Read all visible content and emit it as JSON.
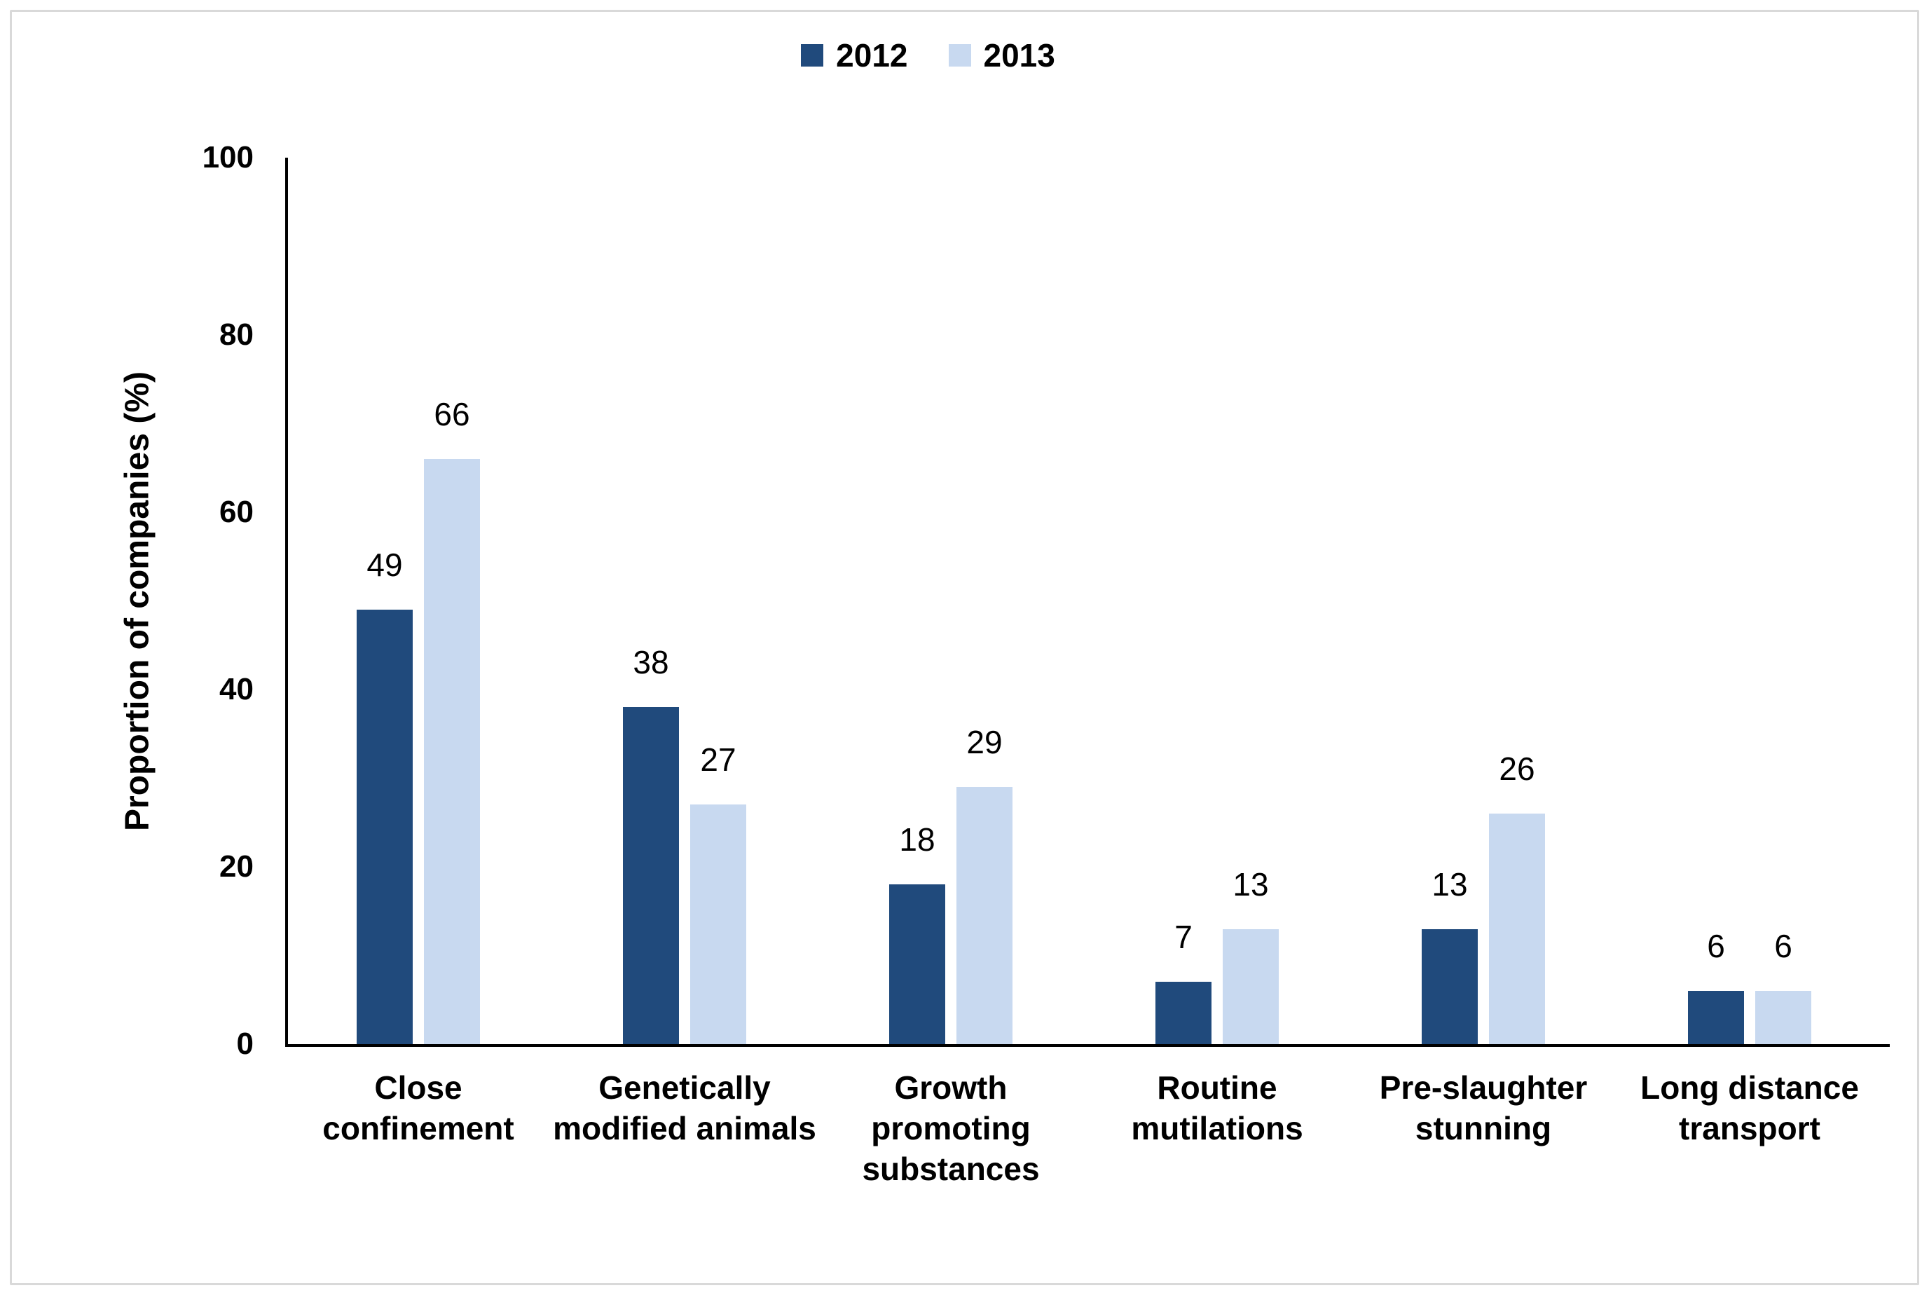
{
  "frame": {
    "border_color": "#d9d9d9",
    "background": "#ffffff"
  },
  "chart_data": {
    "type": "bar",
    "title": "",
    "ylabel": "Proportion of companies (%)",
    "xlabel": "",
    "ylim": [
      0,
      100
    ],
    "yticks": [
      0,
      20,
      40,
      60,
      80,
      100
    ],
    "grid": false,
    "legend_position": "top-center",
    "data_labels": true,
    "categories": [
      "Close confinement",
      "Genetically modified animals",
      "Growth promoting substances",
      "Routine mutilations",
      "Pre-slaughter stunning",
      "Long distance transport"
    ],
    "series": [
      {
        "name": "2012",
        "color": "#204a7c",
        "values": [
          49,
          38,
          18,
          7,
          13,
          6
        ]
      },
      {
        "name": "2013",
        "color": "#c8d9f0",
        "values": [
          66,
          27,
          29,
          13,
          26,
          6
        ]
      }
    ]
  }
}
